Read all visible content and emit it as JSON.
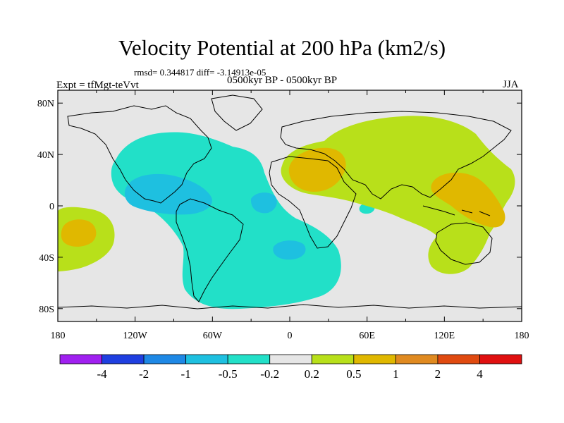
{
  "title": "Velocity Potential at 200 hPa (km2/s)",
  "stats": "rmsd= 0.344817  diff= -3.14913e-05",
  "left_label": "Expt = tfMgt-teVvt",
  "center_label": "0500kyr BP - 0500kyr BP",
  "right_label": "JJA",
  "map": {
    "lon_ticks": [
      "180",
      "120W",
      "60W",
      "0",
      "60E",
      "120E",
      "180"
    ],
    "lat_ticks": [
      "80N",
      "40N",
      "0",
      "40S",
      "80S"
    ],
    "lon_values": [
      -180,
      -120,
      -60,
      0,
      60,
      120,
      180
    ],
    "lat_values": [
      80,
      40,
      0,
      -40,
      -80
    ],
    "lon_range": [
      -180,
      180
    ],
    "lat_range": [
      -90,
      90
    ],
    "ocean_color": "#e6e6e6"
  },
  "colorbar": {
    "labels": [
      "-4",
      "-2",
      "-1",
      "-0.5",
      "-0.2",
      "0.2",
      "0.5",
      "1",
      "2",
      "4"
    ],
    "colors": [
      "#a020f0",
      "#1f3fe0",
      "#1e88e5",
      "#1ec0e0",
      "#22e0c8",
      "#e6e6e6",
      "#b8e01a",
      "#e0b800",
      "#e08a20",
      "#e04a10",
      "#e01010"
    ]
  }
}
